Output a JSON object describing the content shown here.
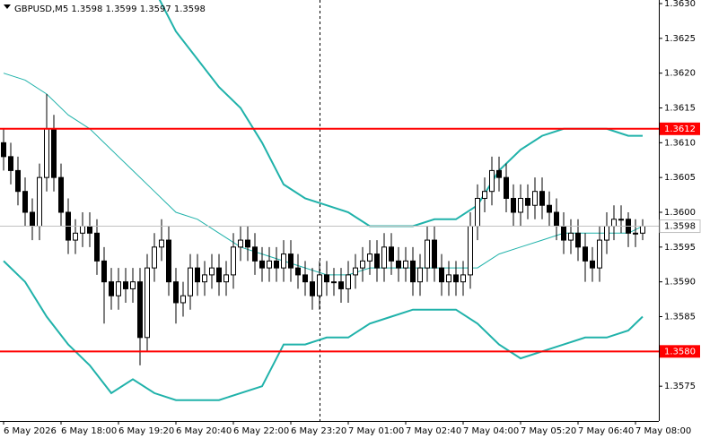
{
  "chart_data": {
    "type": "candlestick",
    "title": "GBPUSD,M5  1.3598 1.3599 1.3597 1.3598",
    "candle_color": "#000000",
    "open": [
      1.361,
      1.3608,
      1.3606,
      1.3603,
      1.36,
      1.3598,
      1.3605,
      1.3612,
      1.3605,
      1.36,
      1.3596,
      1.3597,
      1.3598,
      1.3597,
      1.3593,
      1.359,
      1.3588,
      1.359,
      1.3589,
      1.359,
      1.3582,
      1.3592,
      1.3595,
      1.3596,
      1.359,
      1.3587,
      1.3588,
      1.3592,
      1.359,
      1.3591,
      1.3592,
      1.359,
      1.3591,
      1.3595,
      1.3596,
      1.3595,
      1.3593,
      1.3592,
      1.3593,
      1.3592,
      1.3594,
      1.3592,
      1.3591,
      1.359,
      1.3588,
      1.3591,
      1.359,
      1.359,
      1.3589,
      1.3591,
      1.3592,
      1.3593,
      1.3594,
      1.3592,
      1.3595,
      1.3593,
      1.3592,
      1.3593,
      1.359,
      1.3592,
      1.3596,
      1.3592,
      1.359,
      1.3591,
      1.359,
      1.3591,
      1.3598,
      1.3602,
      1.3603,
      1.3606,
      1.3605,
      1.3602,
      1.36,
      1.3602,
      1.3601,
      1.3603,
      1.3601,
      1.36,
      1.3598,
      1.3596,
      1.3597,
      1.3595,
      1.3593,
      1.3592,
      1.3596,
      1.3598,
      1.3599,
      1.3599,
      1.3597,
      1.3597
    ],
    "high": [
      1.3612,
      1.361,
      1.3608,
      1.3605,
      1.3602,
      1.3607,
      1.3617,
      1.3614,
      1.3607,
      1.3602,
      1.3599,
      1.36,
      1.36,
      1.3599,
      1.3595,
      1.3592,
      1.3592,
      1.3592,
      1.3592,
      1.3592,
      1.3594,
      1.3597,
      1.3599,
      1.3598,
      1.3592,
      1.359,
      1.3594,
      1.3594,
      1.3593,
      1.3594,
      1.3594,
      1.3593,
      1.3597,
      1.3598,
      1.3598,
      1.3597,
      1.3595,
      1.3595,
      1.3595,
      1.3596,
      1.3596,
      1.3594,
      1.3593,
      1.3592,
      1.3593,
      1.3593,
      1.3592,
      1.3592,
      1.3593,
      1.3594,
      1.3595,
      1.3596,
      1.3596,
      1.3597,
      1.3597,
      1.3595,
      1.3595,
      1.3595,
      1.3594,
      1.3598,
      1.3598,
      1.3594,
      1.3593,
      1.3593,
      1.3593,
      1.36,
      1.3604,
      1.3605,
      1.3608,
      1.3608,
      1.3607,
      1.3604,
      1.3604,
      1.3604,
      1.3605,
      1.3605,
      1.3603,
      1.3602,
      1.36,
      1.3599,
      1.3599,
      1.3597,
      1.3595,
      1.3598,
      1.36,
      1.3601,
      1.3601,
      1.36,
      1.3599,
      1.3599
    ],
    "low": [
      1.3606,
      1.3604,
      1.3601,
      1.3598,
      1.3596,
      1.3596,
      1.3603,
      1.3603,
      1.3598,
      1.3594,
      1.3594,
      1.3595,
      1.3595,
      1.3591,
      1.3584,
      1.3586,
      1.3586,
      1.3587,
      1.3587,
      1.3578,
      1.358,
      1.359,
      1.3593,
      1.3588,
      1.3584,
      1.3585,
      1.3586,
      1.3588,
      1.3588,
      1.3589,
      1.3588,
      1.3588,
      1.3589,
      1.3593,
      1.3593,
      1.3591,
      1.359,
      1.359,
      1.359,
      1.359,
      1.359,
      1.3589,
      1.3588,
      1.3586,
      1.3586,
      1.3588,
      1.3588,
      1.3587,
      1.3587,
      1.3589,
      1.359,
      1.3591,
      1.359,
      1.359,
      1.3591,
      1.359,
      1.359,
      1.3588,
      1.3588,
      1.359,
      1.359,
      1.3588,
      1.3588,
      1.3588,
      1.3588,
      1.3589,
      1.3596,
      1.36,
      1.3601,
      1.3603,
      1.36,
      1.3598,
      1.3598,
      1.3599,
      1.3599,
      1.3599,
      1.3598,
      1.3596,
      1.3594,
      1.3594,
      1.3593,
      1.359,
      1.359,
      1.359,
      1.3594,
      1.3596,
      1.3597,
      1.3595,
      1.3595,
      1.3596
    ],
    "close": [
      1.3608,
      1.3606,
      1.3603,
      1.36,
      1.3598,
      1.3605,
      1.3612,
      1.3605,
      1.36,
      1.3596,
      1.3597,
      1.3598,
      1.3597,
      1.3593,
      1.359,
      1.3588,
      1.359,
      1.3589,
      1.359,
      1.3582,
      1.3592,
      1.3595,
      1.3596,
      1.359,
      1.3587,
      1.3588,
      1.3592,
      1.359,
      1.3591,
      1.3592,
      1.359,
      1.3591,
      1.3595,
      1.3596,
      1.3595,
      1.3593,
      1.3592,
      1.3593,
      1.3592,
      1.3594,
      1.3592,
      1.3591,
      1.359,
      1.3588,
      1.3591,
      1.359,
      1.359,
      1.3589,
      1.3591,
      1.3592,
      1.3593,
      1.3594,
      1.3592,
      1.3595,
      1.3593,
      1.3592,
      1.3593,
      1.359,
      1.3592,
      1.3596,
      1.3592,
      1.359,
      1.3591,
      1.359,
      1.3591,
      1.3598,
      1.3602,
      1.3603,
      1.3606,
      1.3605,
      1.3602,
      1.36,
      1.3602,
      1.3601,
      1.3603,
      1.3601,
      1.36,
      1.3598,
      1.3596,
      1.3597,
      1.3595,
      1.3593,
      1.3592,
      1.3596,
      1.3598,
      1.3599,
      1.3599,
      1.3597,
      1.3597,
      1.3598
    ],
    "bands": {
      "color": "#20b2aa",
      "x": [
        0,
        3,
        6,
        9,
        12,
        15,
        18,
        21,
        24,
        27,
        30,
        33,
        36,
        39,
        42,
        45,
        48,
        51,
        54,
        57,
        60,
        63,
        66,
        69,
        72,
        75,
        78,
        81,
        84,
        87,
        89
      ],
      "upper": [
        1.3645,
        1.3645,
        1.3645,
        1.3642,
        1.364,
        1.3638,
        1.3636,
        1.3632,
        1.3626,
        1.3622,
        1.3618,
        1.3615,
        1.361,
        1.3604,
        1.3602,
        1.3601,
        1.36,
        1.3598,
        1.3598,
        1.3598,
        1.3599,
        1.3599,
        1.3601,
        1.3606,
        1.3609,
        1.3611,
        1.3612,
        1.3612,
        1.3612,
        1.3611,
        1.3611
      ],
      "middle": [
        1.362,
        1.3619,
        1.3617,
        1.3614,
        1.3612,
        1.3609,
        1.3606,
        1.3603,
        1.36,
        1.3599,
        1.3597,
        1.3595,
        1.3594,
        1.3593,
        1.3592,
        1.3591,
        1.3591,
        1.3592,
        1.3592,
        1.3592,
        1.3592,
        1.3592,
        1.3592,
        1.3594,
        1.3595,
        1.3596,
        1.3597,
        1.3597,
        1.3597,
        1.3597,
        1.3598
      ],
      "lower": [
        1.3593,
        1.359,
        1.3585,
        1.3581,
        1.3578,
        1.3574,
        1.3576,
        1.3574,
        1.3573,
        1.3573,
        1.3573,
        1.3574,
        1.3575,
        1.3581,
        1.3581,
        1.3582,
        1.3582,
        1.3584,
        1.3585,
        1.3586,
        1.3586,
        1.3586,
        1.3584,
        1.3581,
        1.3579,
        1.358,
        1.3581,
        1.3582,
        1.3582,
        1.3583,
        1.3585
      ]
    },
    "levels": [
      {
        "value": 1.3612,
        "label": "1.3612",
        "color": "#ff0000"
      },
      {
        "value": 1.358,
        "label": "1.3580",
        "color": "#ff0000"
      }
    ],
    "last_price": {
      "value": 1.3598,
      "label": "1.3598",
      "color": "#c0c0c0"
    },
    "ylim": [
      1.357,
      1.363
    ],
    "yticks": [
      {
        "value": 1.3575,
        "label": "1.3575"
      },
      {
        "value": 1.3585,
        "label": "1.3585"
      },
      {
        "value": 1.359,
        "label": "1.3590"
      },
      {
        "value": 1.3595,
        "label": "1.3595"
      },
      {
        "value": 1.36,
        "label": "1.3600"
      },
      {
        "value": 1.3605,
        "label": "1.3605"
      },
      {
        "value": 1.361,
        "label": "1.3610"
      },
      {
        "value": 1.3615,
        "label": "1.3615"
      },
      {
        "value": 1.362,
        "label": "1.3620"
      },
      {
        "value": 1.3625,
        "label": "1.3625"
      },
      {
        "value": 1.363,
        "label": "1.3630"
      }
    ],
    "x_labels": [
      "6 May 2026",
      "6 May 18:00",
      "6 May 19:20",
      "6 May 20:40",
      "6 May 22:00",
      "6 May 23:20",
      "7 May 01:00",
      "7 May 02:40",
      "7 May 04:00",
      "7 May 05:20",
      "7 May 06:40",
      "7 May 08:00"
    ]
  }
}
